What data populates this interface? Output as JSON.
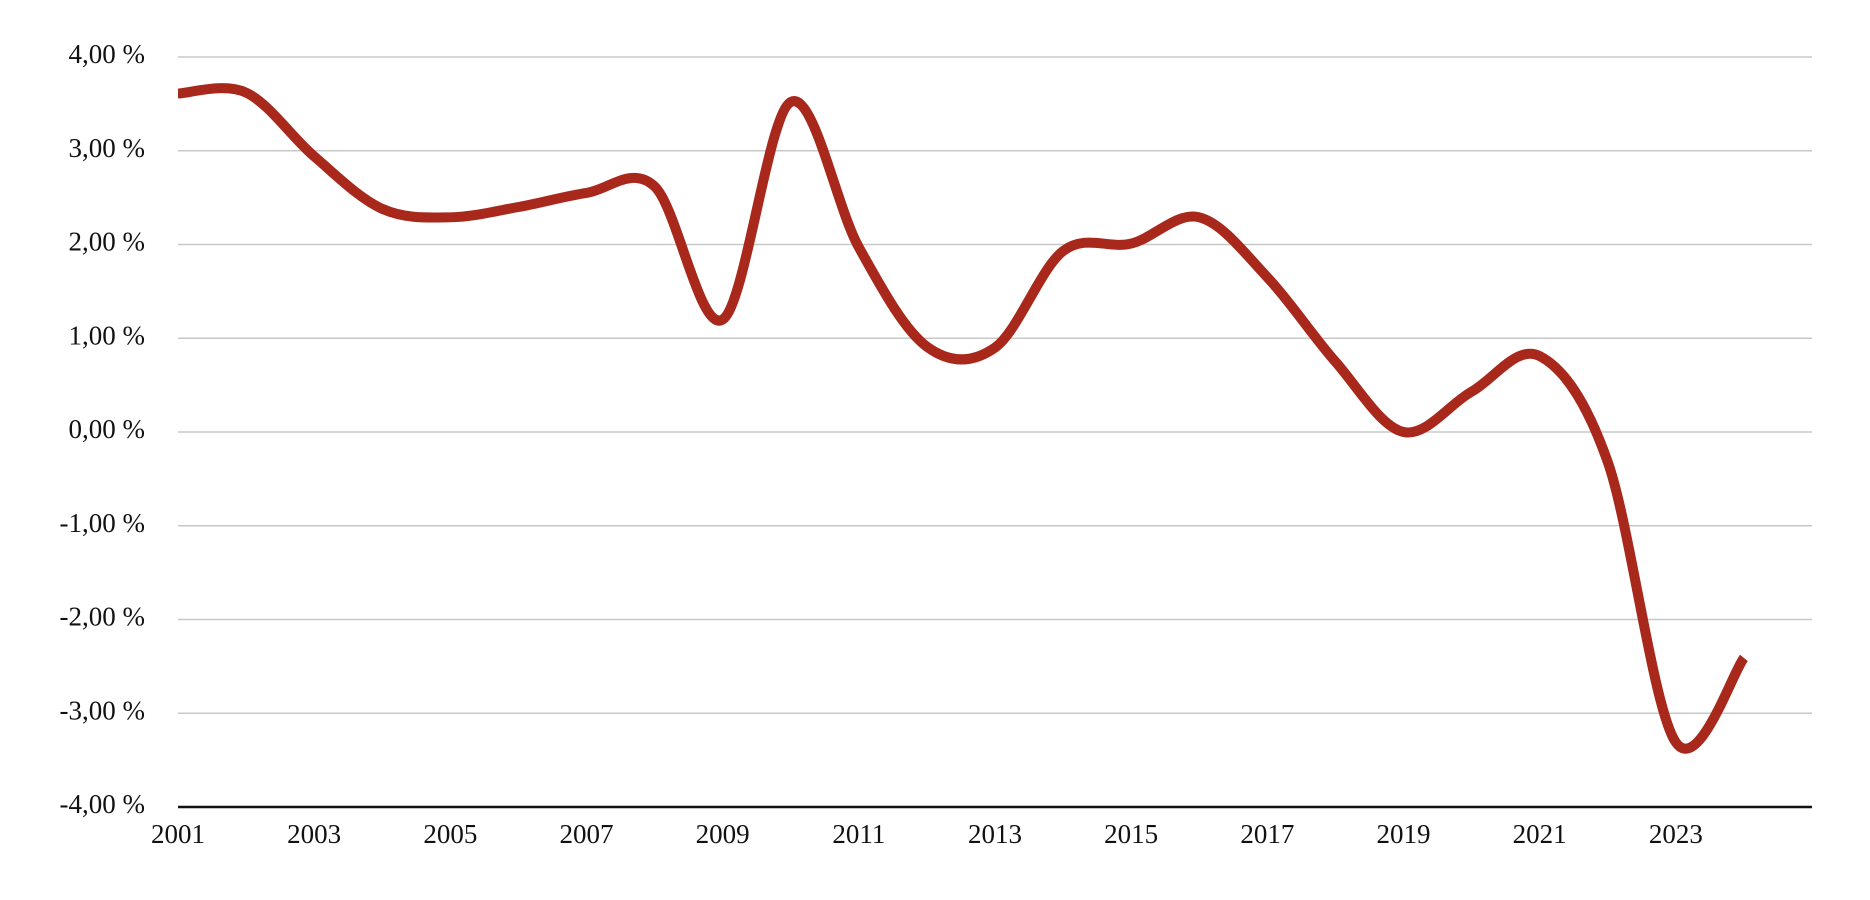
{
  "chart_data": {
    "type": "line",
    "x": [
      2001,
      2002,
      2003,
      2004,
      2005,
      2006,
      2007,
      2008,
      2009,
      2010,
      2011,
      2012,
      2013,
      2014,
      2015,
      2016,
      2017,
      2018,
      2019,
      2020,
      2021,
      2022,
      2023,
      2024
    ],
    "series": [
      {
        "color": "#a8281b",
        "values": [
          3.61,
          3.62,
          2.94,
          2.38,
          2.29,
          2.4,
          2.55,
          2.62,
          1.2,
          3.52,
          1.97,
          0.91,
          0.9,
          1.93,
          2.01,
          2.29,
          1.65,
          0.75,
          0.0,
          0.43,
          0.81,
          -0.32,
          -3.31,
          -2.41
        ]
      }
    ],
    "xlim": [
      2001,
      2025
    ],
    "xticks": [
      2001,
      2003,
      2005,
      2007,
      2009,
      2011,
      2013,
      2015,
      2017,
      2019,
      2021,
      2023
    ],
    "ylim": [
      -4,
      4
    ],
    "yticks": [
      {
        "value": -4,
        "label": "-4,00 %"
      },
      {
        "value": -3,
        "label": "-3,00 %"
      },
      {
        "value": -2,
        "label": "-2,00 %"
      },
      {
        "value": -1,
        "label": "-1,00 %"
      },
      {
        "value": 0,
        "label": "0,00 %"
      },
      {
        "value": 1,
        "label": "1,00 %"
      },
      {
        "value": 2,
        "label": "2,00 %"
      },
      {
        "value": 3,
        "label": "3,00 %"
      },
      {
        "value": 4,
        "label": "4,00 %"
      }
    ],
    "grid": true
  }
}
